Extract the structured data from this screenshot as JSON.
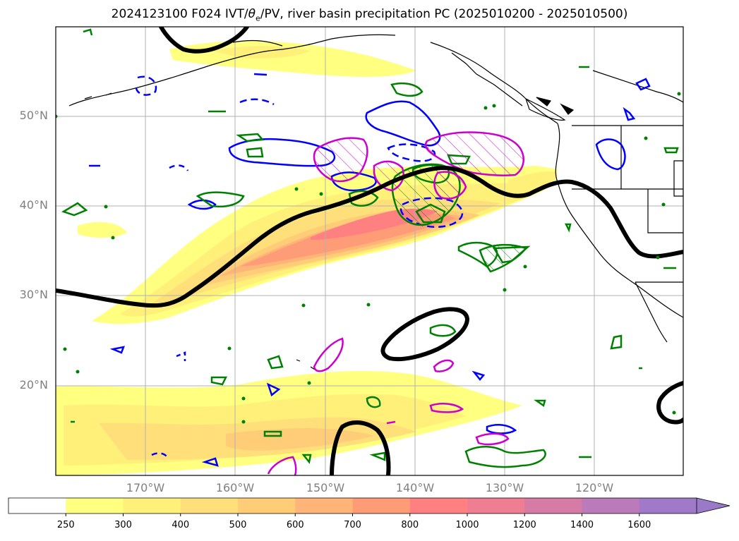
{
  "title": {
    "run": "2024123100 F024 IVT/",
    "theta_symbol": "θ",
    "theta_sub": "e",
    "rest": "/PV, river basin precipitation PC (2025010200 - 2025010500)"
  },
  "axes": {
    "lat_labels": [
      "50°N",
      "40°N",
      "30°N",
      "20°N"
    ],
    "lon_labels": [
      "170°W",
      "160°W",
      "150°W",
      "140°W",
      "130°W",
      "120°W"
    ]
  },
  "colorbar": {
    "tick_labels": [
      "250",
      "300",
      "400",
      "500",
      "600",
      "700",
      "800",
      "1000",
      "1200",
      "1400",
      "1600"
    ],
    "colors": [
      "#ffffff",
      "#ffff80",
      "#fff07a",
      "#ffdf7a",
      "#ffcd78",
      "#ffb478",
      "#ff9c78",
      "#ff8080",
      "#ef7e92",
      "#d67aa6",
      "#bb7bbb",
      "#a07ac8"
    ],
    "extend": "max"
  },
  "map_legend_colors": {
    "pv_contour": "#000000",
    "theta_e_blue": "#0000ff",
    "theta_e_green": "#008000",
    "precip_magenta": "#cc00cc"
  }
}
